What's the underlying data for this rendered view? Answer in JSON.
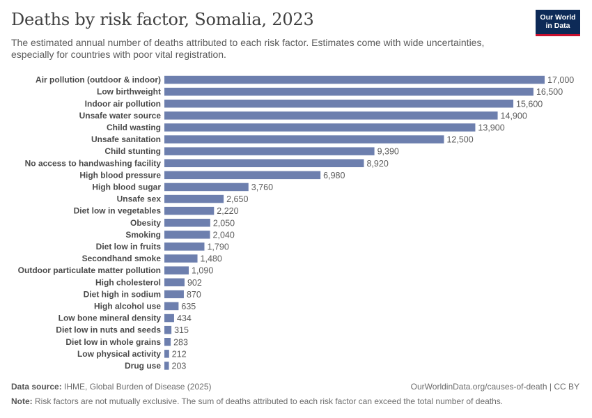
{
  "header": {
    "title": "Deaths by risk factor, Somalia, 2023",
    "subtitle": "The estimated annual number of deaths attributed to each risk factor. Estimates come with wide uncertainties, especially for countries with poor vital registration.",
    "logo_line1": "Our World",
    "logo_line2": "in Data"
  },
  "footer": {
    "source_label": "Data source:",
    "source_text": "IHME, Global Burden of Disease (2025)",
    "url": "OurWorldinData.org/causes-of-death | CC BY",
    "note_label": "Note:",
    "note_text": "Risk factors are not mutually exclusive. The sum of deaths attributed to each risk factor can exceed the total number of deaths."
  },
  "colors": {
    "bar": "#6d7fae",
    "logo_bg": "#0d2a57",
    "logo_accent": "#c8102e"
  },
  "chart_data": {
    "type": "bar",
    "orientation": "horizontal",
    "title": "Deaths by risk factor, Somalia, 2023",
    "xlabel": "",
    "ylabel": "",
    "xlim": [
      0,
      17000
    ],
    "grid": false,
    "categories": [
      "Air pollution (outdoor & indoor)",
      "Low birthweight",
      "Indoor air pollution",
      "Unsafe water source",
      "Child wasting",
      "Unsafe sanitation",
      "Child stunting",
      "No access to handwashing facility",
      "High blood pressure",
      "High blood sugar",
      "Unsafe sex",
      "Diet low in vegetables",
      "Obesity",
      "Smoking",
      "Diet low in fruits",
      "Secondhand smoke",
      "Outdoor particulate matter pollution",
      "High cholesterol",
      "Diet high in sodium",
      "High alcohol use",
      "Low bone mineral density",
      "Diet low in nuts and seeds",
      "Diet low in whole grains",
      "Low physical activity",
      "Drug use"
    ],
    "values": [
      17000,
      16500,
      15600,
      14900,
      13900,
      12500,
      9390,
      8920,
      6980,
      3760,
      2650,
      2220,
      2050,
      2040,
      1790,
      1480,
      1090,
      902,
      870,
      635,
      434,
      315,
      283,
      212,
      203
    ],
    "value_labels": [
      "17,000",
      "16,500",
      "15,600",
      "14,900",
      "13,900",
      "12,500",
      "9,390",
      "8,920",
      "6,980",
      "3,760",
      "2,650",
      "2,220",
      "2,050",
      "2,040",
      "1,790",
      "1,480",
      "1,090",
      "902",
      "870",
      "635",
      "434",
      "315",
      "283",
      "212",
      "203"
    ]
  }
}
